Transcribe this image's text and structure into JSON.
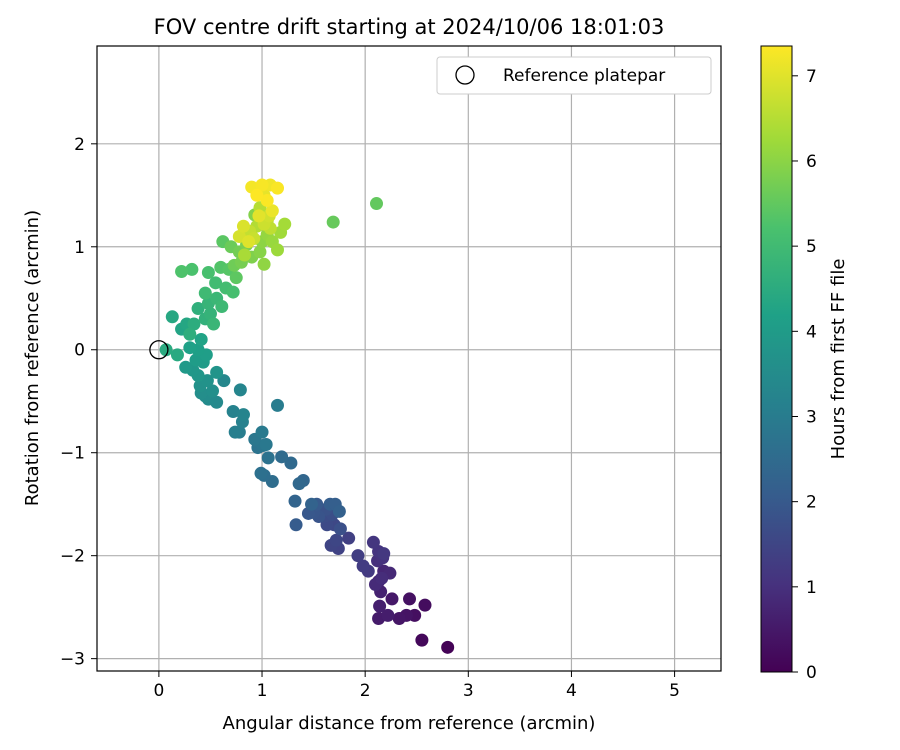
{
  "chart_data": {
    "type": "scatter",
    "title": "FOV centre drift starting at 2024/10/06 18:01:03",
    "xlabel": "Angular distance from reference (arcmin)",
    "ylabel": "Rotation from reference (arcmin)",
    "xlim": [
      -0.6,
      5.45
    ],
    "ylim": [
      -3.12,
      2.95
    ],
    "x_ticks": [
      0,
      1,
      2,
      3,
      4,
      5
    ],
    "y_ticks": [
      -3,
      -2,
      -1,
      0,
      1,
      2
    ],
    "grid": true,
    "legend": {
      "position": "top-right",
      "entries": [
        "Reference platepar"
      ]
    },
    "reference_point": {
      "x": 0,
      "y": 0
    },
    "colorbar": {
      "label": "Hours from first FF file",
      "colormap": "viridis",
      "range": [
        0,
        7.35
      ],
      "ticks": [
        0,
        1,
        2,
        3,
        4,
        5,
        6,
        7
      ]
    },
    "points": [
      [
        2.8,
        -2.89,
        0.05
      ],
      [
        2.55,
        -2.82,
        0.15
      ],
      [
        2.58,
        -2.48,
        0.25
      ],
      [
        2.48,
        -2.58,
        0.3
      ],
      [
        2.43,
        -2.42,
        0.35
      ],
      [
        2.4,
        -2.58,
        0.4
      ],
      [
        2.33,
        -2.61,
        0.45
      ],
      [
        2.26,
        -2.42,
        0.5
      ],
      [
        2.13,
        -2.61,
        0.55
      ],
      [
        2.22,
        -2.58,
        0.6
      ],
      [
        2.14,
        -2.49,
        0.65
      ],
      [
        2.15,
        -2.35,
        0.7
      ],
      [
        2.13,
        -2.25,
        0.75
      ],
      [
        2.18,
        -2.15,
        0.8
      ],
      [
        2.24,
        -2.17,
        0.85
      ],
      [
        2.1,
        -2.28,
        0.9
      ],
      [
        2.16,
        -2.22,
        0.95
      ],
      [
        2.12,
        -2.05,
        1.0
      ],
      [
        2.17,
        -2.02,
        1.05
      ],
      [
        2.13,
        -1.96,
        1.1
      ],
      [
        2.08,
        -1.87,
        1.15
      ],
      [
        2.18,
        -1.98,
        1.2
      ],
      [
        2.03,
        -2.15,
        1.25
      ],
      [
        1.98,
        -2.1,
        1.3
      ],
      [
        1.93,
        -2.0,
        1.35
      ],
      [
        1.84,
        -1.83,
        1.4
      ],
      [
        1.74,
        -1.93,
        1.45
      ],
      [
        1.67,
        -1.9,
        1.5
      ],
      [
        1.72,
        -1.85,
        1.55
      ],
      [
        1.7,
        -1.7,
        1.6
      ],
      [
        1.63,
        -1.7,
        1.65
      ],
      [
        1.6,
        -1.62,
        1.7
      ],
      [
        1.68,
        -1.6,
        1.75
      ],
      [
        1.76,
        -1.74,
        1.8
      ],
      [
        1.62,
        -1.55,
        1.85
      ],
      [
        1.55,
        -1.62,
        1.9
      ],
      [
        1.5,
        -1.58,
        1.95
      ],
      [
        1.45,
        -1.59,
        2.0
      ],
      [
        1.53,
        -1.5,
        2.05
      ],
      [
        1.33,
        -1.7,
        2.1
      ],
      [
        1.66,
        -1.5,
        2.15
      ],
      [
        1.71,
        -1.5,
        2.2
      ],
      [
        1.75,
        -1.57,
        2.25
      ],
      [
        1.48,
        -1.5,
        2.3
      ],
      [
        1.32,
        -1.47,
        2.35
      ],
      [
        1.4,
        -1.27,
        2.4
      ],
      [
        1.36,
        -1.3,
        2.45
      ],
      [
        1.28,
        -1.1,
        2.5
      ],
      [
        1.19,
        -1.04,
        2.55
      ],
      [
        1.1,
        -1.28,
        2.6
      ],
      [
        1.02,
        -1.22,
        2.65
      ],
      [
        0.99,
        -1.2,
        2.7
      ],
      [
        1.06,
        -1.05,
        2.75
      ],
      [
        0.96,
        -0.95,
        2.8
      ],
      [
        1.01,
        -0.93,
        2.85
      ],
      [
        0.93,
        -0.87,
        2.9
      ],
      [
        1.04,
        -0.92,
        2.95
      ],
      [
        1.0,
        -0.8,
        3.0
      ],
      [
        1.15,
        -0.54,
        3.05
      ],
      [
        0.78,
        -0.8,
        3.1
      ],
      [
        0.74,
        -0.8,
        3.15
      ],
      [
        0.81,
        -0.7,
        3.2
      ],
      [
        0.72,
        -0.6,
        3.25
      ],
      [
        0.82,
        -0.63,
        3.3
      ],
      [
        0.79,
        -0.39,
        3.35
      ],
      [
        0.63,
        -0.3,
        3.4
      ],
      [
        0.56,
        -0.51,
        3.45
      ],
      [
        0.48,
        -0.48,
        3.5
      ],
      [
        0.45,
        -0.45,
        3.55
      ],
      [
        0.41,
        -0.42,
        3.6
      ],
      [
        0.52,
        -0.4,
        3.65
      ],
      [
        0.4,
        -0.35,
        3.7
      ],
      [
        0.47,
        -0.3,
        3.75
      ],
      [
        0.56,
        -0.22,
        3.8
      ],
      [
        0.38,
        -0.25,
        3.85
      ],
      [
        0.33,
        -0.2,
        3.9
      ],
      [
        0.26,
        -0.17,
        3.95
      ],
      [
        0.43,
        -0.12,
        4.0
      ],
      [
        0.36,
        -0.1,
        4.05
      ],
      [
        0.46,
        -0.05,
        4.1
      ],
      [
        0.38,
        0.0,
        4.15
      ],
      [
        0.3,
        0.02,
        4.2
      ],
      [
        0.41,
        0.1,
        4.25
      ],
      [
        0.22,
        0.2,
        4.3
      ],
      [
        0.27,
        0.25,
        4.35
      ],
      [
        0.13,
        0.32,
        4.4
      ],
      [
        0.18,
        -0.05,
        4.45
      ],
      [
        0.07,
        0.0,
        4.5
      ],
      [
        0.34,
        0.25,
        4.55
      ],
      [
        0.3,
        0.15,
        4.6
      ],
      [
        0.38,
        0.4,
        4.65
      ],
      [
        0.45,
        0.3,
        4.7
      ],
      [
        0.5,
        0.35,
        4.75
      ],
      [
        0.48,
        0.45,
        4.8
      ],
      [
        0.53,
        0.25,
        4.85
      ],
      [
        0.56,
        0.5,
        4.9
      ],
      [
        0.61,
        0.42,
        4.95
      ],
      [
        0.45,
        0.55,
        5.0
      ],
      [
        0.55,
        0.65,
        5.05
      ],
      [
        0.65,
        0.6,
        5.1
      ],
      [
        0.72,
        0.56,
        5.15
      ],
      [
        0.48,
        0.75,
        5.2
      ],
      [
        0.32,
        0.78,
        5.25
      ],
      [
        0.22,
        0.76,
        5.3
      ],
      [
        0.6,
        0.8,
        5.35
      ],
      [
        0.68,
        0.78,
        5.4
      ],
      [
        0.62,
        1.05,
        5.45
      ],
      [
        0.75,
        0.7,
        5.5
      ],
      [
        2.11,
        1.42,
        5.55
      ],
      [
        1.69,
        1.24,
        5.6
      ],
      [
        0.7,
        1.0,
        5.65
      ],
      [
        0.73,
        0.82,
        5.7
      ],
      [
        0.78,
        0.95,
        5.75
      ],
      [
        0.8,
        0.85,
        5.8
      ],
      [
        0.85,
        1.02,
        5.85
      ],
      [
        0.9,
        0.9,
        5.9
      ],
      [
        0.93,
        1.31,
        5.95
      ],
      [
        0.98,
        0.95,
        6.0
      ],
      [
        1.0,
        1.05,
        6.05
      ],
      [
        1.02,
        0.83,
        6.1
      ],
      [
        1.05,
        1.12,
        6.15
      ],
      [
        1.1,
        1.05,
        6.2
      ],
      [
        1.15,
        0.97,
        6.25
      ],
      [
        1.18,
        1.14,
        6.3
      ],
      [
        1.22,
        1.22,
        6.35
      ],
      [
        0.83,
        0.92,
        6.4
      ],
      [
        0.9,
        1.1,
        6.45
      ],
      [
        0.95,
        1.2,
        6.5
      ],
      [
        0.98,
        1.38,
        6.55
      ],
      [
        1.05,
        1.25,
        6.6
      ],
      [
        1.08,
        1.18,
        6.65
      ],
      [
        0.88,
        1.15,
        6.7
      ],
      [
        0.92,
        1.08,
        6.75
      ],
      [
        1.02,
        1.22,
        6.8
      ],
      [
        1.07,
        1.3,
        6.85
      ],
      [
        0.78,
        1.1,
        6.9
      ],
      [
        0.82,
        1.2,
        6.95
      ],
      [
        0.87,
        1.05,
        7.0
      ],
      [
        0.97,
        1.3,
        7.05
      ],
      [
        1.02,
        1.5,
        7.1
      ],
      [
        1.1,
        1.35,
        7.15
      ],
      [
        1.08,
        1.6,
        7.2
      ],
      [
        0.9,
        1.58,
        7.25
      ],
      [
        1.0,
        1.6,
        7.28
      ],
      [
        1.15,
        1.57,
        7.3
      ],
      [
        1.05,
        1.45,
        7.33
      ],
      [
        0.95,
        1.5,
        7.35
      ]
    ]
  }
}
